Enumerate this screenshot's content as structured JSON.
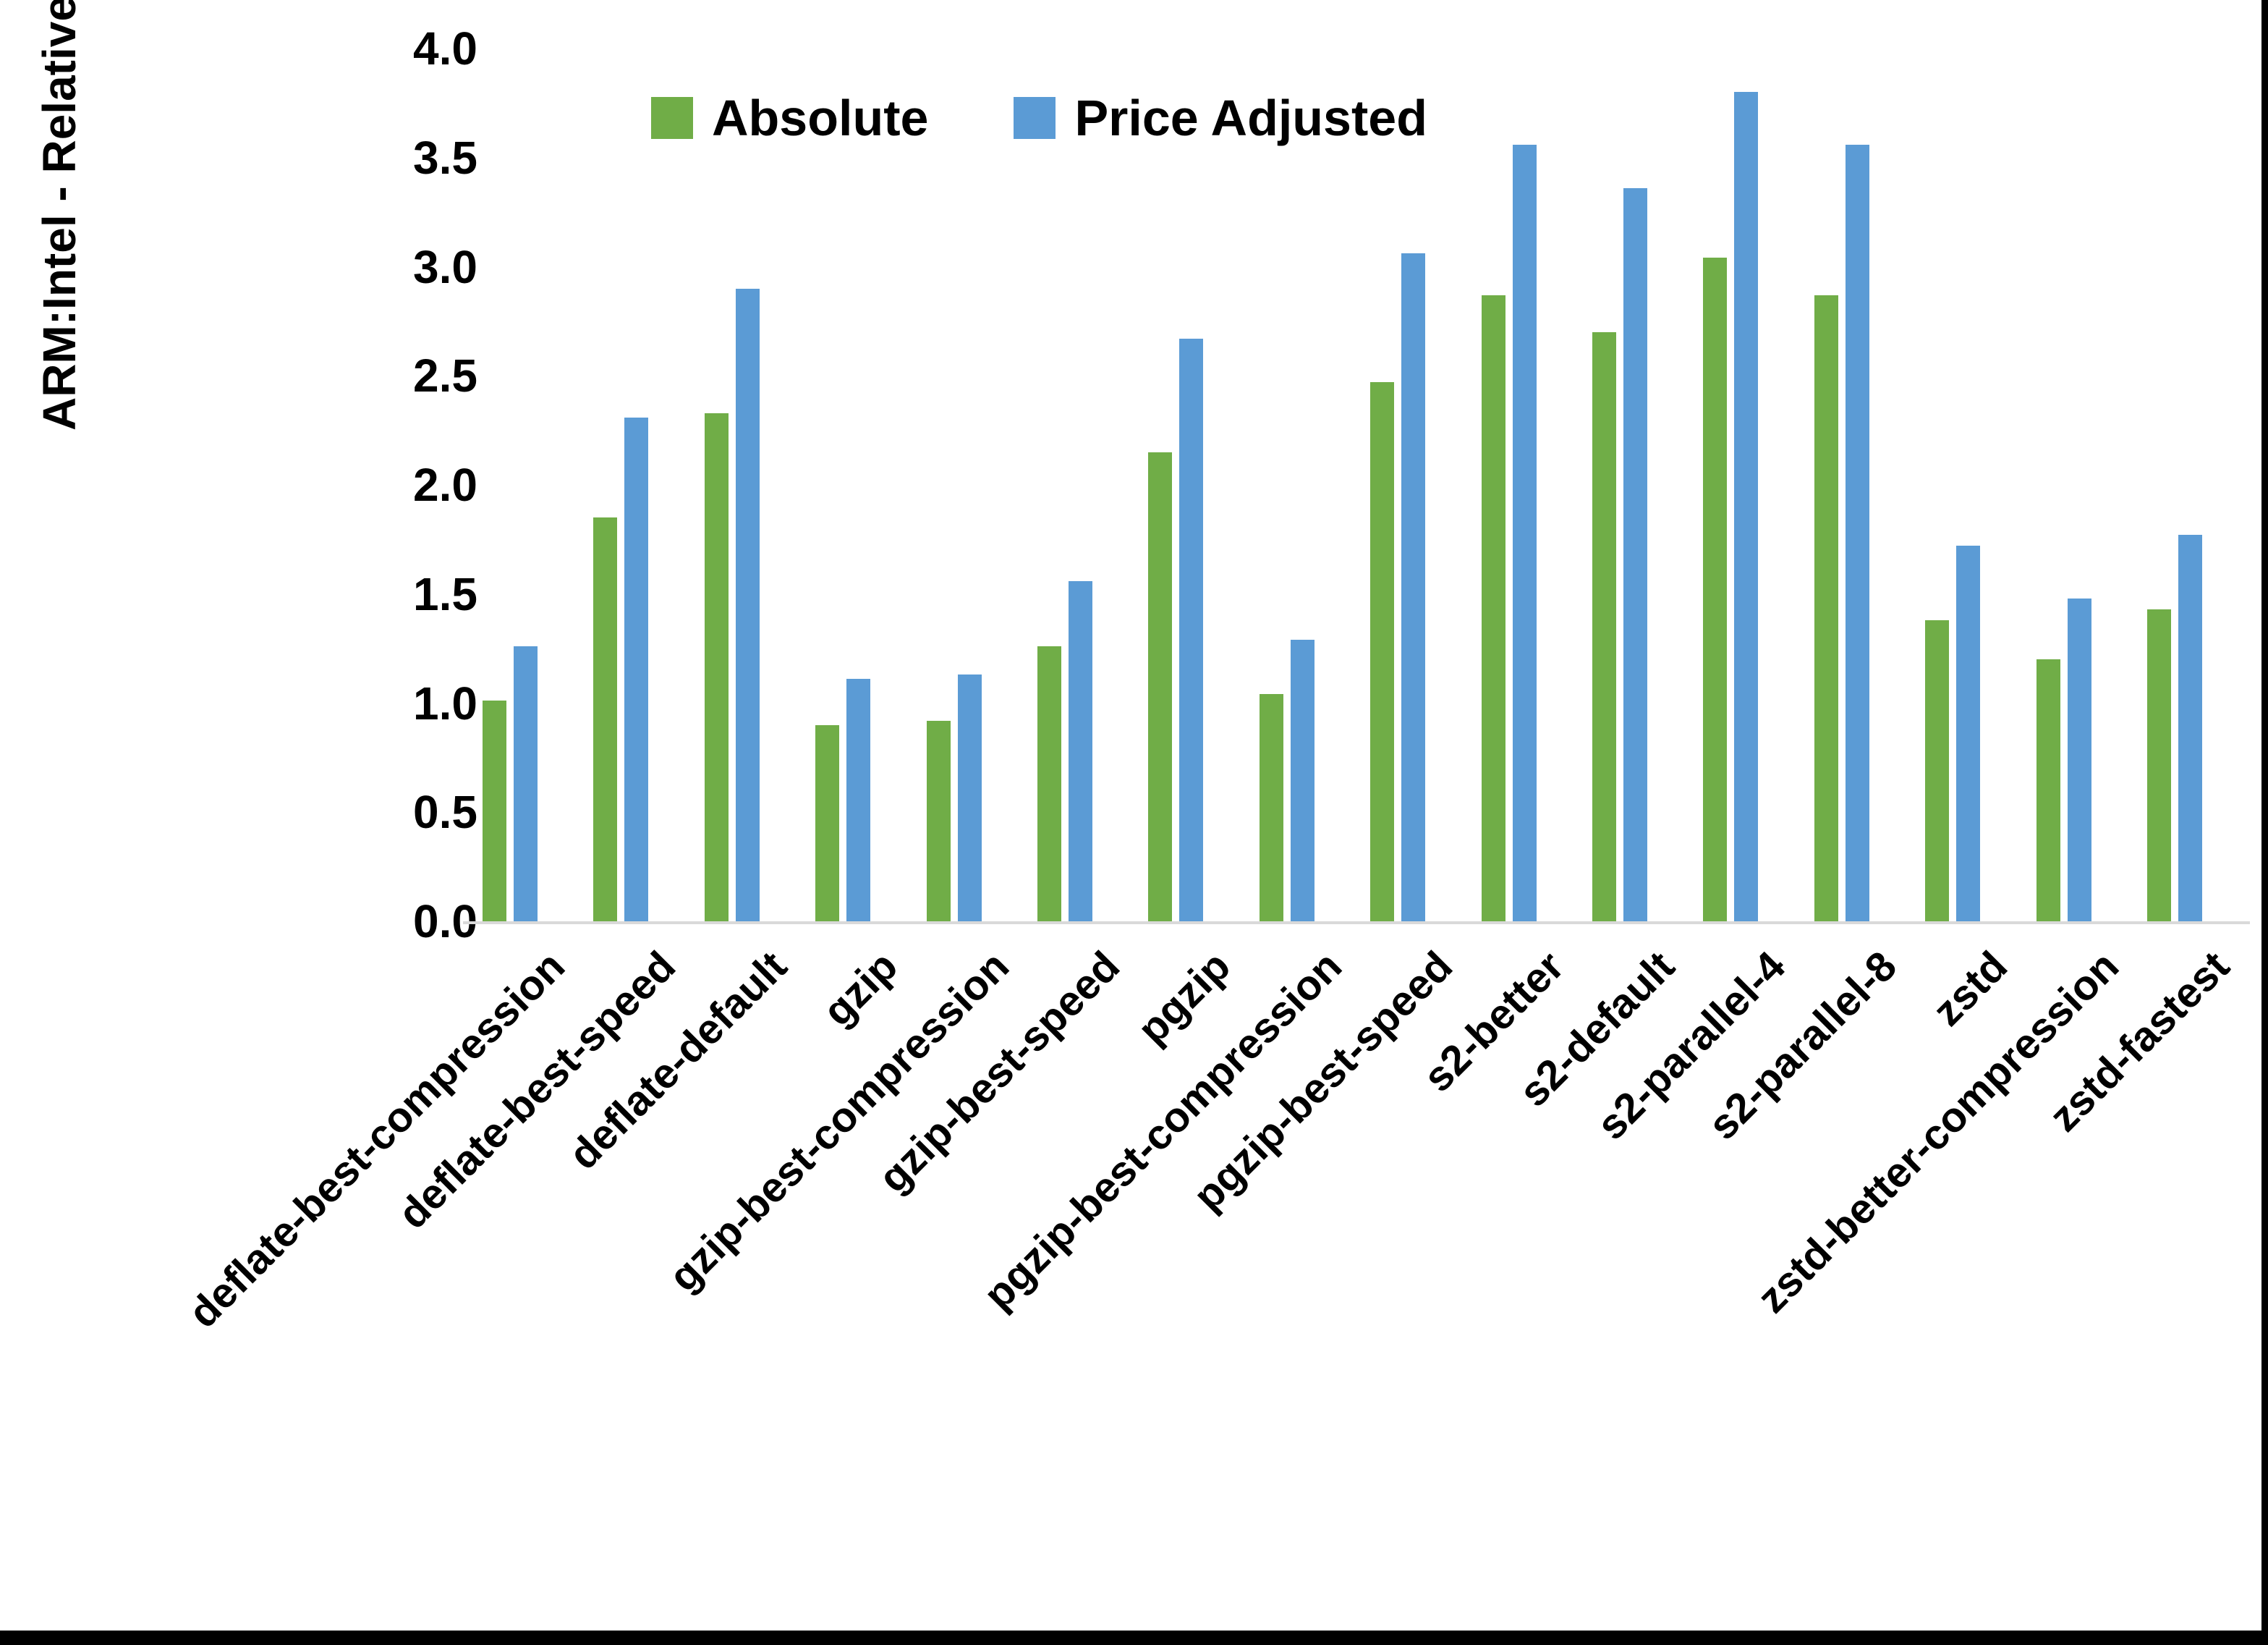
{
  "chart_data": {
    "type": "bar",
    "title": "",
    "xlabel": "",
    "ylabel": "ARM:Intel - Relative Performance",
    "ylim": [
      0.0,
      4.0
    ],
    "ytick_step": 0.5,
    "grid": false,
    "legend_position": "top-center",
    "categories": [
      "deflate-best-compression",
      "deflate-best-speed",
      "deflate-default",
      "gzip",
      "gzip-best-compression",
      "gzip-best-speed",
      "pgzip",
      "pgzip-best-compression",
      "pgzip-best-speed",
      "s2-better",
      "s2-default",
      "s2-parallel-4",
      "s2-parallel-8",
      "zstd",
      "zstd-better-compression",
      "zstd-fastest"
    ],
    "series": [
      {
        "name": "Absolute",
        "color": "#70AD47",
        "values": [
          1.01,
          1.85,
          2.33,
          0.9,
          0.92,
          1.26,
          2.15,
          1.04,
          2.47,
          2.87,
          2.7,
          3.04,
          2.87,
          1.38,
          1.2,
          1.43
        ]
      },
      {
        "name": "Price Adjusted",
        "color": "#5B9BD5",
        "values": [
          1.26,
          2.31,
          2.9,
          1.11,
          1.13,
          1.56,
          2.67,
          1.29,
          3.06,
          3.56,
          3.36,
          3.8,
          3.56,
          1.72,
          1.48,
          1.77
        ]
      }
    ],
    "axis_line_color": "#D9D9D9",
    "text_color": "#000000",
    "background_color": "#FFFFFF"
  }
}
